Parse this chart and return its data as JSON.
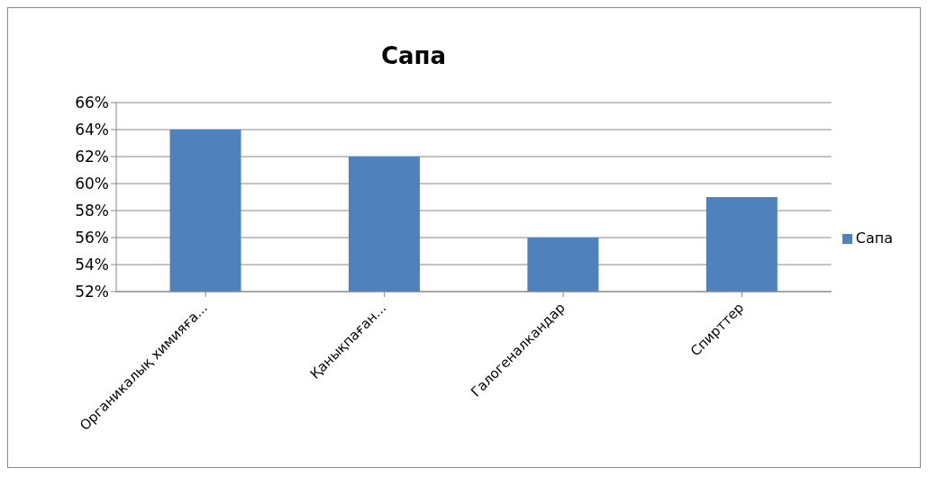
{
  "chart_data": {
    "type": "bar",
    "title": "Сапа",
    "categories": [
      "Органикалық химияға...",
      "Қанықпаған...",
      "Галогеналкандар",
      "Спирттер"
    ],
    "series": [
      {
        "name": "Сапа",
        "color": "#4f81bd",
        "values": [
          64,
          62,
          56,
          59
        ]
      }
    ],
    "ylim": [
      52,
      66
    ],
    "yticks": [
      {
        "value": 52,
        "label": "52%"
      },
      {
        "value": 54,
        "label": "54%"
      },
      {
        "value": 56,
        "label": "56%"
      },
      {
        "value": 58,
        "label": "58%"
      },
      {
        "value": 60,
        "label": "60%"
      },
      {
        "value": 62,
        "label": "62%"
      },
      {
        "value": 64,
        "label": "64%"
      },
      {
        "value": 66,
        "label": "66%"
      }
    ],
    "grid": "y",
    "legend": "right"
  }
}
